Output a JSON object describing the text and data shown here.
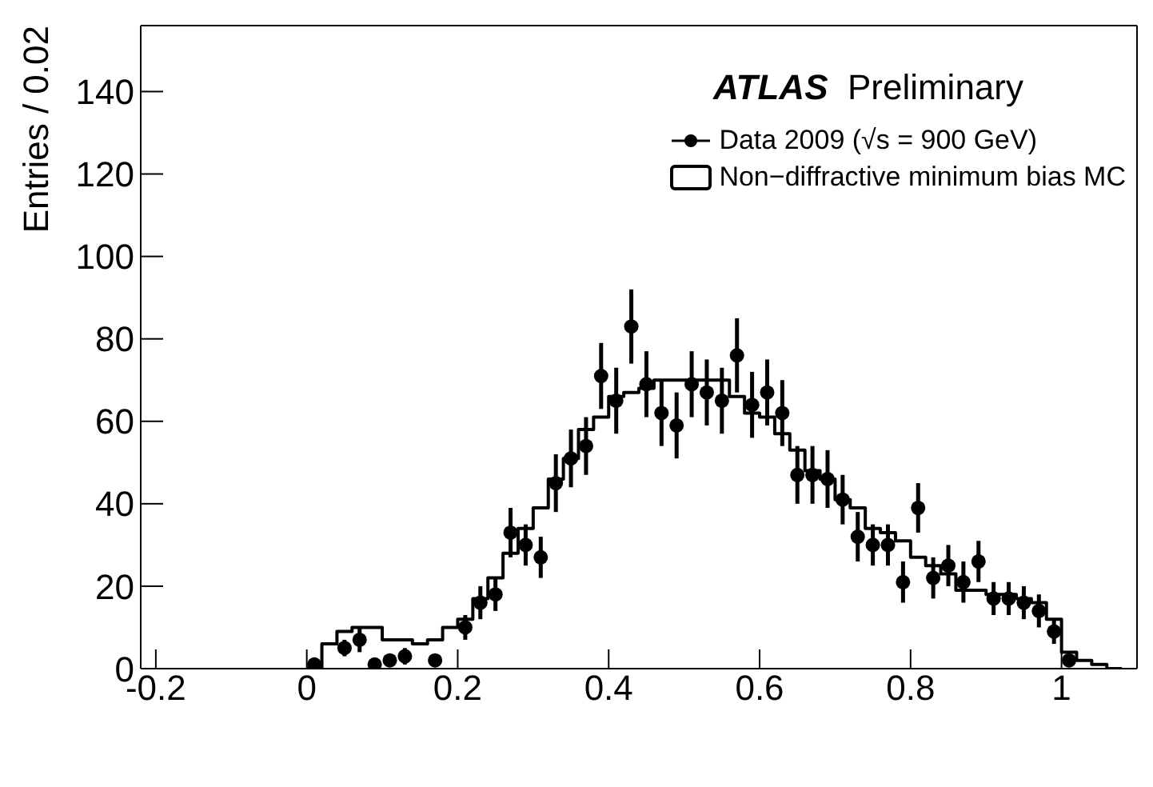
{
  "chart_data": {
    "type": "histogram",
    "ylabel": "Entries / 0.02",
    "annotations": [
      "ATLAS Preliminary"
    ],
    "bins": [
      0,
      0.02,
      0.04,
      0.06,
      0.08,
      0.1,
      0.12,
      0.14,
      0.16,
      0.18,
      0.2,
      0.22,
      0.24,
      0.26,
      0.28,
      0.3,
      0.32,
      0.34,
      0.36,
      0.38,
      0.4,
      0.42,
      0.44,
      0.46,
      0.48,
      0.5,
      0.52,
      0.54,
      0.56,
      0.58,
      0.6,
      0.62,
      0.64,
      0.66,
      0.68,
      0.7,
      0.72,
      0.74,
      0.76,
      0.78,
      0.8,
      0.82,
      0.84,
      0.86,
      0.88,
      0.9,
      0.92,
      0.94,
      0.96,
      0.98,
      1,
      1.02,
      1.04,
      1.06,
      1.08
    ],
    "series": [
      {
        "name": "Data 2009 (√s = 900 GeV)",
        "type": "scatter",
        "color": "#000000",
        "x": [
          0.01,
          0.05,
          0.07,
          0.09,
          0.11,
          0.13,
          0.17,
          0.21,
          0.23,
          0.25,
          0.27,
          0.29,
          0.31,
          0.33,
          0.35,
          0.37,
          0.39,
          0.41,
          0.43,
          0.45,
          0.47,
          0.49,
          0.51,
          0.53,
          0.55,
          0.57,
          0.59,
          0.61,
          0.63,
          0.65,
          0.67,
          0.69,
          0.71,
          0.73,
          0.75,
          0.77,
          0.79,
          0.81,
          0.83,
          0.85,
          0.87,
          0.89,
          0.91,
          0.93,
          0.95,
          0.97,
          0.99,
          1.01
        ],
        "values": [
          1,
          5,
          7,
          1,
          2,
          3,
          2,
          10,
          16,
          18,
          33,
          30,
          27,
          45,
          51,
          54,
          71,
          65,
          83,
          69,
          62,
          59,
          69,
          67,
          65,
          76,
          64,
          67,
          62,
          47,
          47,
          46,
          41,
          32,
          30,
          30,
          21,
          39,
          22,
          25,
          21,
          26,
          17,
          17,
          16,
          14,
          9,
          2
        ],
        "errors": [
          1,
          2,
          3,
          1,
          1,
          2,
          1,
          3,
          4,
          4,
          6,
          5,
          5,
          7,
          7,
          7,
          8,
          8,
          9,
          8,
          8,
          8,
          8,
          8,
          8,
          9,
          8,
          8,
          8,
          7,
          7,
          7,
          6,
          6,
          5,
          5,
          5,
          6,
          5,
          5,
          5,
          5,
          4,
          4,
          4,
          4,
          3,
          1
        ]
      },
      {
        "name": "Non−diffractive minimum bias MC",
        "color": "#000000",
        "values": [
          0,
          6,
          9,
          10,
          10,
          7,
          7,
          6,
          7,
          10,
          12,
          17,
          22,
          28,
          34,
          39,
          46,
          51,
          58,
          61,
          66,
          67,
          68,
          70,
          70,
          70,
          70,
          70,
          66,
          62,
          61,
          57,
          53,
          48,
          46,
          41,
          39,
          34,
          33,
          31,
          27,
          25,
          23,
          19,
          19,
          18,
          18,
          17,
          16,
          12,
          4,
          2,
          1,
          0
        ]
      }
    ],
    "xlim": [
      -0.22,
      1.1
    ],
    "xticks": [
      -0.2,
      0,
      0.2,
      0.4,
      0.6,
      0.8,
      1
    ],
    "ylim": [
      0,
      156
    ],
    "yticks": [
      0,
      20,
      40,
      60,
      80,
      100,
      120,
      140
    ],
    "legend": "top right",
    "marker": "circle"
  }
}
